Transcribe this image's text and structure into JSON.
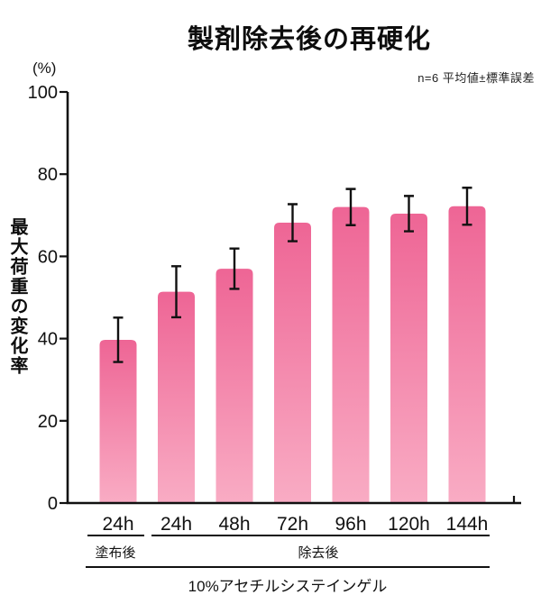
{
  "chart_data": {
    "type": "bar",
    "title": "製剤除去後の再硬化",
    "note": "n=6 平均値±標準誤差",
    "ylabel": "最大荷重の変化率",
    "y_unit": "(%)",
    "ylim": [
      0,
      100
    ],
    "y_ticks": [
      0,
      20,
      40,
      60,
      80,
      100
    ],
    "categories": [
      "24h",
      "24h",
      "48h",
      "72h",
      "96h",
      "120h",
      "144h"
    ],
    "values": [
      39.7,
      51.4,
      57.0,
      68.2,
      72.0,
      70.4,
      72.2
    ],
    "errors": [
      5.4,
      6.2,
      4.9,
      4.5,
      4.4,
      4.3,
      4.5
    ],
    "groups": [
      {
        "label": "塗布後",
        "from": 0,
        "to": 0
      },
      {
        "label": "除去後",
        "from": 1,
        "to": 6
      }
    ],
    "footer": "10%アセチルシステインゲル",
    "grid": false,
    "legend": false,
    "colors": {
      "bar_top": "#ee6595",
      "bar_bottom": "#f9acc4",
      "axis": "#111111",
      "error_bar": "#111111",
      "text": "#111111"
    }
  }
}
